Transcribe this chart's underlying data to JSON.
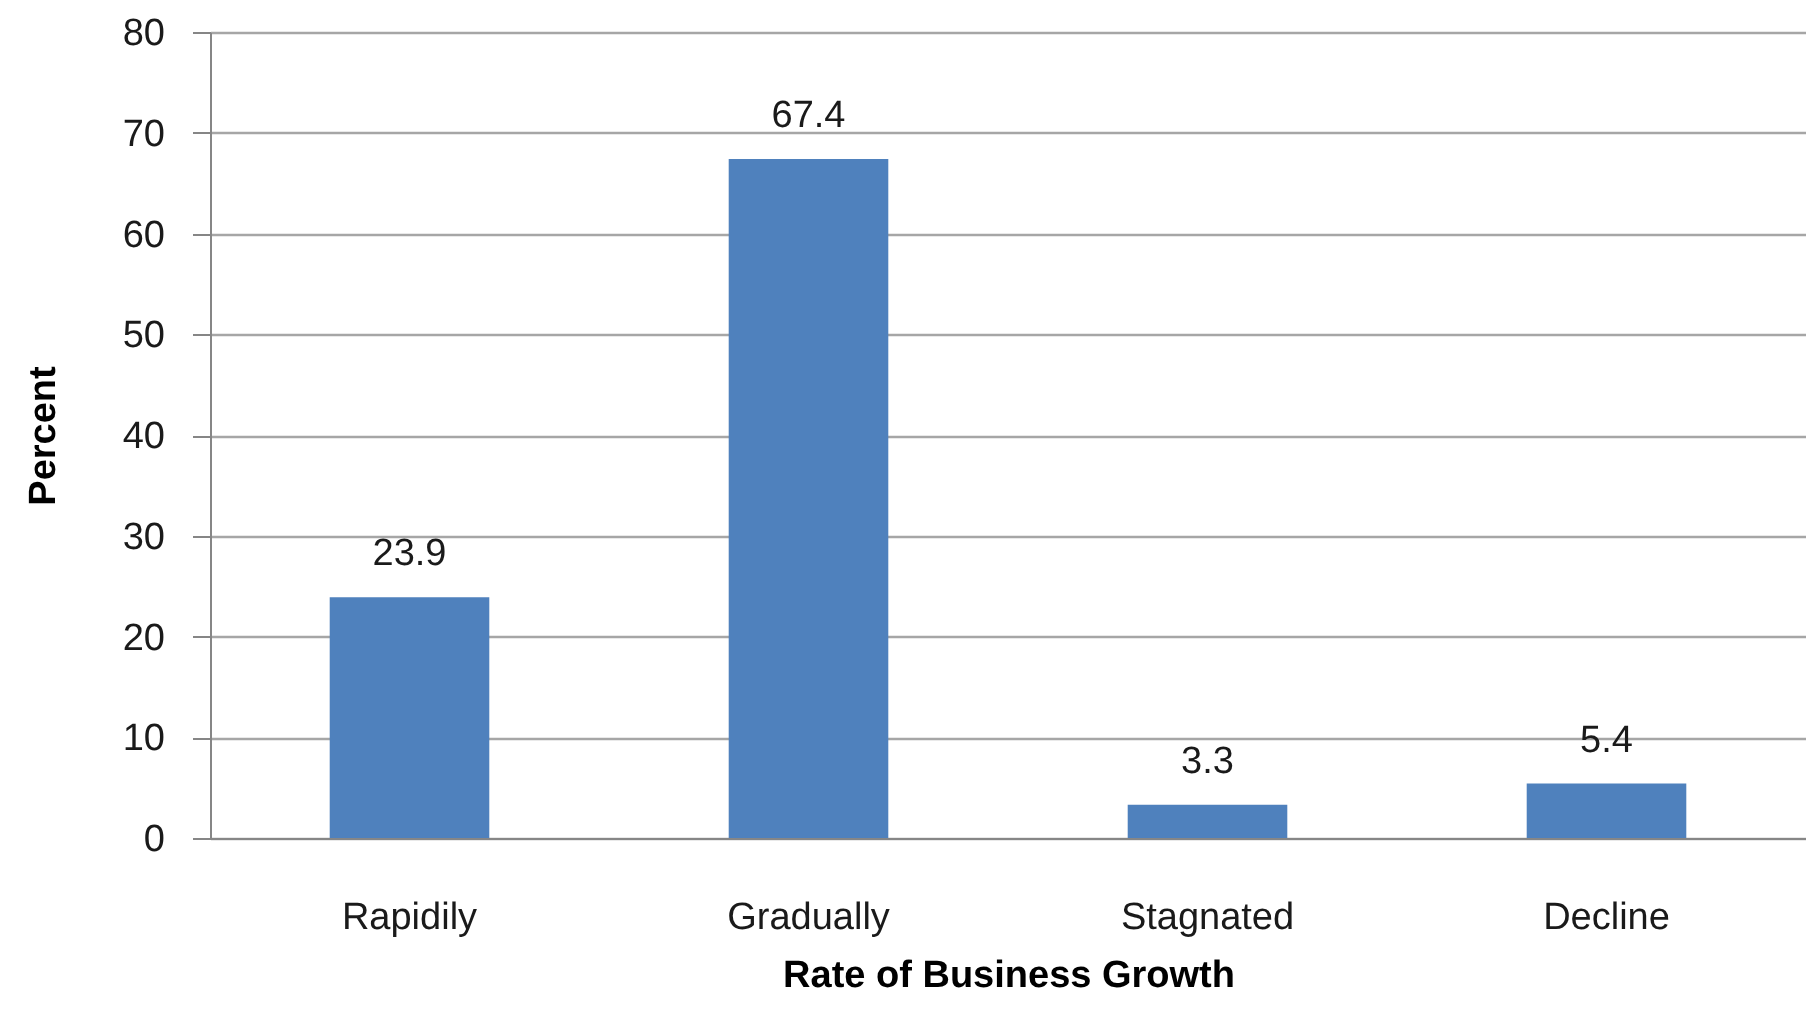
{
  "chart_data": {
    "type": "bar",
    "xlabel": "Rate of Business Growth",
    "ylabel": "Percent",
    "categories": [
      "Rapidily",
      "Gradually",
      "Stagnated",
      "Decline"
    ],
    "values": [
      23.9,
      67.4,
      3.3,
      5.4
    ],
    "color": "#4f81bd",
    "ylim": [
      0,
      80
    ],
    "yticks": [
      0,
      10,
      20,
      30,
      40,
      50,
      60,
      70,
      80
    ],
    "grid": "y",
    "data_labels": true
  }
}
